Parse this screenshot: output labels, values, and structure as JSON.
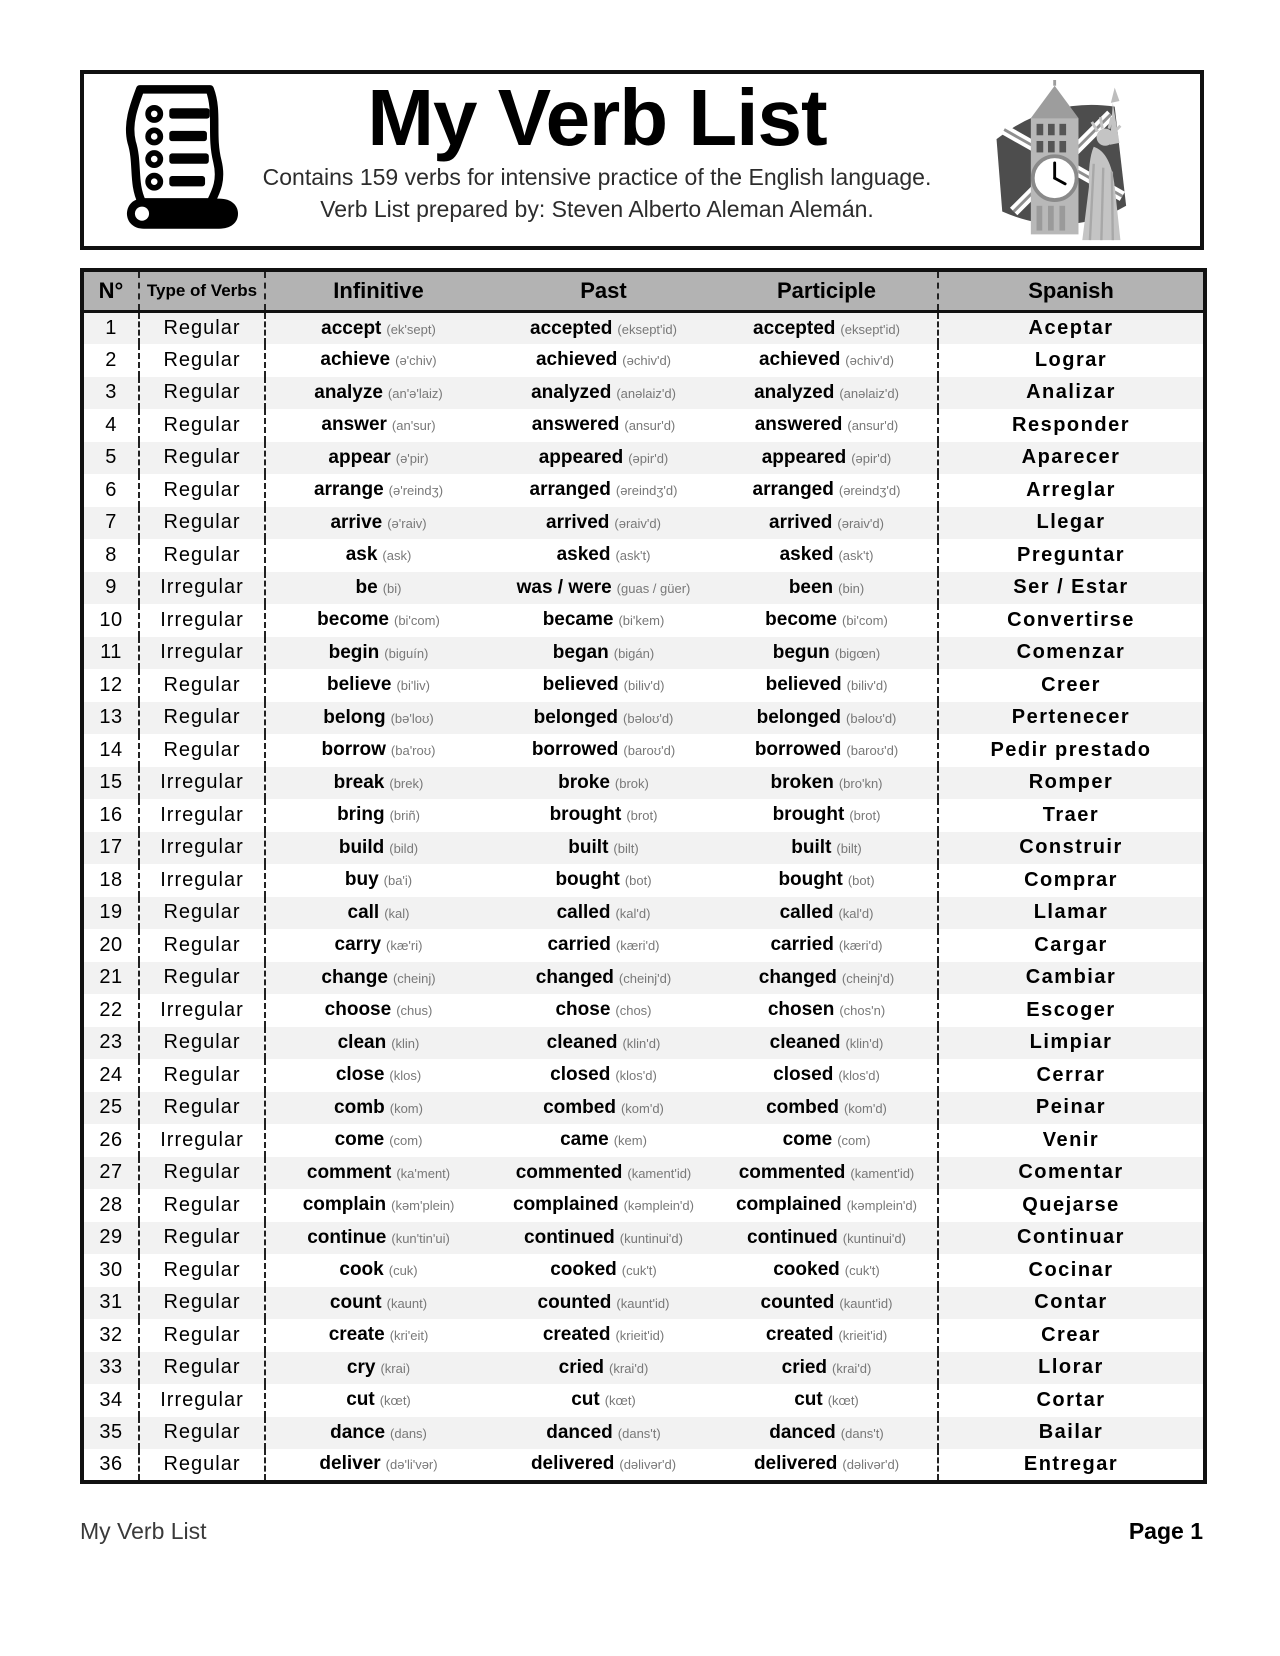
{
  "header": {
    "title": "My Verb List",
    "subtitle1": "Contains 159 verbs for intensive practice of the English language.",
    "subtitle2": "Verb List prepared by: Steven Alberto Aleman Alemán.",
    "left_icon": "scroll-list-icon",
    "right_icon": "big-ben-statue-of-liberty-illustration"
  },
  "table": {
    "columns": [
      "N°",
      "Type of Verbs",
      "Infinitive",
      "Past",
      "Participle",
      "Spanish"
    ],
    "rows": [
      {
        "n": "1",
        "type": "Regular",
        "inf": "accept",
        "inf_p": "(ek'sept)",
        "past": "accepted",
        "past_p": "(eksept'id)",
        "part": "accepted",
        "part_p": "(eksept'id)",
        "es": "Aceptar"
      },
      {
        "n": "2",
        "type": "Regular",
        "inf": "achieve",
        "inf_p": "(ə'chiv)",
        "past": "achieved",
        "past_p": "(əchiv'd)",
        "part": "achieved",
        "part_p": "(əchiv'd)",
        "es": "Lograr"
      },
      {
        "n": "3",
        "type": "Regular",
        "inf": "analyze",
        "inf_p": "(an'ə'laiz)",
        "past": "analyzed",
        "past_p": "(anəlaiz'd)",
        "part": "analyzed",
        "part_p": "(anəlaiz'd)",
        "es": "Analizar"
      },
      {
        "n": "4",
        "type": "Regular",
        "inf": "answer",
        "inf_p": "(an'sur)",
        "past": "answered",
        "past_p": "(ansur'd)",
        "part": "answered",
        "part_p": "(ansur'd)",
        "es": "Responder"
      },
      {
        "n": "5",
        "type": "Regular",
        "inf": "appear",
        "inf_p": "(ə'pir)",
        "past": "appeared",
        "past_p": "(əpir'd)",
        "part": "appeared",
        "part_p": "(əpir'd)",
        "es": "Aparecer"
      },
      {
        "n": "6",
        "type": "Regular",
        "inf": "arrange",
        "inf_p": "(ə'reindʒ)",
        "past": "arranged",
        "past_p": "(əreindʒ'd)",
        "part": "arranged",
        "part_p": "(əreindʒ'd)",
        "es": "Arreglar"
      },
      {
        "n": "7",
        "type": "Regular",
        "inf": "arrive",
        "inf_p": "(ə'raiv)",
        "past": "arrived",
        "past_p": "(əraiv'd)",
        "part": "arrived",
        "part_p": "(əraiv'd)",
        "es": "Llegar"
      },
      {
        "n": "8",
        "type": "Regular",
        "inf": "ask",
        "inf_p": "(ask)",
        "past": "asked",
        "past_p": "(ask't)",
        "part": "asked",
        "part_p": "(ask't)",
        "es": "Preguntar"
      },
      {
        "n": "9",
        "type": "Irregular",
        "inf": "be",
        "inf_p": "(bi)",
        "past": "was / were",
        "past_p": "(guas / güer)",
        "part": "been",
        "part_p": "(bin)",
        "es": "Ser / Estar"
      },
      {
        "n": "10",
        "type": "Irregular",
        "inf": "become",
        "inf_p": "(bi'com)",
        "past": "became",
        "past_p": "(bi'kem)",
        "part": "become",
        "part_p": "(bi'com)",
        "es": "Convertirse"
      },
      {
        "n": "11",
        "type": "Irregular",
        "inf": "begin",
        "inf_p": "(biguín)",
        "past": "began",
        "past_p": "(bigán)",
        "part": "begun",
        "part_p": "(bigœn)",
        "es": "Comenzar"
      },
      {
        "n": "12",
        "type": "Regular",
        "inf": "believe",
        "inf_p": "(bi'liv)",
        "past": "believed",
        "past_p": "(biliv'd)",
        "part": "believed",
        "part_p": "(biliv'd)",
        "es": "Creer"
      },
      {
        "n": "13",
        "type": "Regular",
        "inf": "belong",
        "inf_p": "(bə'loʊ)",
        "past": "belonged",
        "past_p": "(bəloʊ'd)",
        "part": "belonged",
        "part_p": "(bəloʊ'd)",
        "es": "Pertenecer"
      },
      {
        "n": "14",
        "type": "Regular",
        "inf": "borrow",
        "inf_p": "(ba'roʊ)",
        "past": "borrowed",
        "past_p": "(baroʊ'd)",
        "part": "borrowed",
        "part_p": "(baroʊ'd)",
        "es": "Pedir prestado"
      },
      {
        "n": "15",
        "type": "Irregular",
        "inf": "break",
        "inf_p": "(brek)",
        "past": "broke",
        "past_p": "(brok)",
        "part": "broken",
        "part_p": "(bro'kn)",
        "es": "Romper"
      },
      {
        "n": "16",
        "type": "Irregular",
        "inf": "bring",
        "inf_p": "(briñ)",
        "past": "brought",
        "past_p": "(brot)",
        "part": "brought",
        "part_p": "(brot)",
        "es": "Traer"
      },
      {
        "n": "17",
        "type": "Irregular",
        "inf": "build",
        "inf_p": "(bild)",
        "past": "built",
        "past_p": "(bilt)",
        "part": "built",
        "part_p": "(bilt)",
        "es": "Construir"
      },
      {
        "n": "18",
        "type": "Irregular",
        "inf": "buy",
        "inf_p": "(ba'i)",
        "past": "bought",
        "past_p": "(bot)",
        "part": "bought",
        "part_p": "(bot)",
        "es": "Comprar"
      },
      {
        "n": "19",
        "type": "Regular",
        "inf": "call",
        "inf_p": "(kal)",
        "past": "called",
        "past_p": "(kal'd)",
        "part": "called",
        "part_p": "(kal'd)",
        "es": "Llamar"
      },
      {
        "n": "20",
        "type": "Regular",
        "inf": "carry",
        "inf_p": "(kæ'ri)",
        "past": "carried",
        "past_p": "(kæri'd)",
        "part": "carried",
        "part_p": "(kæri'd)",
        "es": "Cargar"
      },
      {
        "n": "21",
        "type": "Regular",
        "inf": "change",
        "inf_p": "(cheinj)",
        "past": "changed",
        "past_p": "(cheinj'd)",
        "part": "changed",
        "part_p": "(cheinj'd)",
        "es": "Cambiar"
      },
      {
        "n": "22",
        "type": "Irregular",
        "inf": "choose",
        "inf_p": "(chus)",
        "past": "chose",
        "past_p": "(chos)",
        "part": "chosen",
        "part_p": "(chos'n)",
        "es": "Escoger"
      },
      {
        "n": "23",
        "type": "Regular",
        "inf": "clean",
        "inf_p": "(klin)",
        "past": "cleaned",
        "past_p": "(klin'd)",
        "part": "cleaned",
        "part_p": "(klin'd)",
        "es": "Limpiar"
      },
      {
        "n": "24",
        "type": "Regular",
        "inf": "close",
        "inf_p": "(klos)",
        "past": "closed",
        "past_p": "(klos'd)",
        "part": "closed",
        "part_p": "(klos'd)",
        "es": "Cerrar"
      },
      {
        "n": "25",
        "type": "Regular",
        "inf": "comb",
        "inf_p": "(kom)",
        "past": "combed",
        "past_p": "(kom'd)",
        "part": "combed",
        "part_p": "(kom'd)",
        "es": "Peinar"
      },
      {
        "n": "26",
        "type": "Irregular",
        "inf": "come",
        "inf_p": "(com)",
        "past": "came",
        "past_p": "(kem)",
        "part": "come",
        "part_p": "(com)",
        "es": "Venir"
      },
      {
        "n": "27",
        "type": "Regular",
        "inf": "comment",
        "inf_p": "(ka'ment)",
        "past": "commented",
        "past_p": "(kament'id)",
        "part": "commented",
        "part_p": "(kament'id)",
        "es": "Comentar"
      },
      {
        "n": "28",
        "type": "Regular",
        "inf": "complain",
        "inf_p": "(kəm'plein)",
        "past": "complained",
        "past_p": "(kəmplein'd)",
        "part": "complained",
        "part_p": "(kəmplein'd)",
        "es": "Quejarse"
      },
      {
        "n": "29",
        "type": "Regular",
        "inf": "continue",
        "inf_p": "(kun'tin'ui)",
        "past": "continued",
        "past_p": "(kuntinui'd)",
        "part": "continued",
        "part_p": "(kuntinui'd)",
        "es": "Continuar"
      },
      {
        "n": "30",
        "type": "Regular",
        "inf": "cook",
        "inf_p": "(cuk)",
        "past": "cooked",
        "past_p": "(cuk't)",
        "part": "cooked",
        "part_p": "(cuk't)",
        "es": "Cocinar"
      },
      {
        "n": "31",
        "type": "Regular",
        "inf": "count",
        "inf_p": "(kaunt)",
        "past": "counted",
        "past_p": "(kaunt'id)",
        "part": "counted",
        "part_p": "(kaunt'id)",
        "es": "Contar"
      },
      {
        "n": "32",
        "type": "Regular",
        "inf": "create",
        "inf_p": "(kri'eit)",
        "past": "created",
        "past_p": "(krieit'id)",
        "part": "created",
        "part_p": "(krieit'id)",
        "es": "Crear"
      },
      {
        "n": "33",
        "type": "Regular",
        "inf": "cry",
        "inf_p": "(krai)",
        "past": "cried",
        "past_p": "(krai'd)",
        "part": "cried",
        "part_p": "(krai'd)",
        "es": "Llorar"
      },
      {
        "n": "34",
        "type": "Irregular",
        "inf": "cut",
        "inf_p": "(kœt)",
        "past": "cut",
        "past_p": "(kœt)",
        "part": "cut",
        "part_p": "(kœt)",
        "es": "Cortar"
      },
      {
        "n": "35",
        "type": "Regular",
        "inf": "dance",
        "inf_p": "(dans)",
        "past": "danced",
        "past_p": "(dans't)",
        "part": "danced",
        "part_p": "(dans't)",
        "es": "Bailar"
      },
      {
        "n": "36",
        "type": "Regular",
        "inf": "deliver",
        "inf_p": "(də'li'vər)",
        "past": "delivered",
        "past_p": "(dəlivər'd)",
        "part": "delivered",
        "part_p": "(dəlivər'd)",
        "es": "Entregar"
      }
    ]
  },
  "footer": {
    "left": "My Verb List",
    "right": "Page 1"
  },
  "colors": {
    "table_header_bg": "#b3b3b3",
    "row_stripe": "#f2f2f2",
    "border": "#111111",
    "phonetic_text": "#787878"
  }
}
